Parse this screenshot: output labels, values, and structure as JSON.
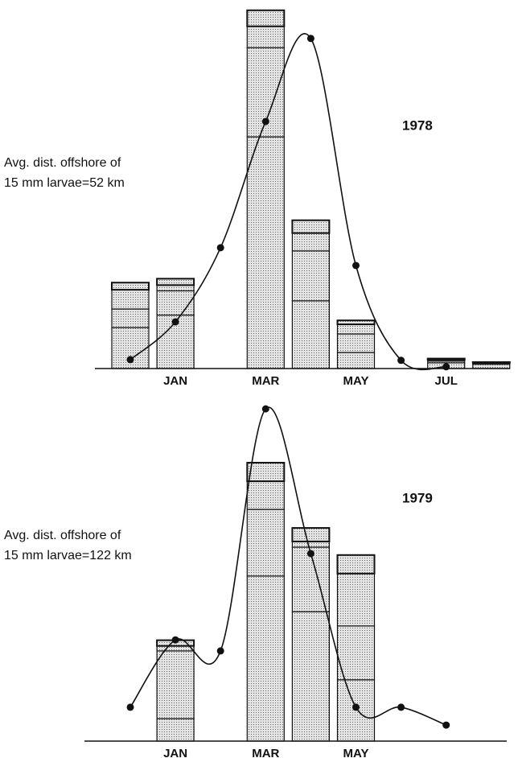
{
  "chart_data": [
    {
      "type": "bar",
      "title": "1978",
      "annotation": [
        "Avg. dist. offshore of",
        "15 mm larvae=52 km"
      ],
      "categories": [
        null,
        "JAN",
        null,
        "MAR",
        null,
        "MAY",
        null,
        "JUL",
        null
      ],
      "ylim": [
        0,
        100
      ],
      "color": "#c8c8c8",
      "line_color": "#111111",
      "series": [
        {
          "color": "#c8c8c8",
          "values": [
            11.5,
            15,
            null,
            65,
            19,
            4.5,
            null,
            1.6,
            1.2
          ]
        },
        {
          "color": "#c8c8c8",
          "values": [
            5.2,
            6.8,
            null,
            25,
            14,
            5.2,
            null,
            0.5,
            0.3
          ]
        },
        {
          "color": "#c8c8c8",
          "values": [
            5.4,
            1.6,
            null,
            6,
            5,
            2.7,
            null,
            0.4,
            0.2
          ]
        },
        {
          "color": "#c8c8c8",
          "values": [
            2,
            1.8,
            null,
            4.5,
            3.6,
            1.1,
            null,
            0.3,
            0.1
          ]
        }
      ],
      "line": {
        "values": [
          2.5,
          13.1,
          33.9,
          69.3,
          92.6,
          28.9,
          2.3,
          0.5,
          null
        ]
      }
    },
    {
      "type": "bar",
      "title": "1979",
      "annotation": [
        "Avg. dist. offshore of",
        "15 mm larvae=122 km"
      ],
      "categories": [
        null,
        "JAN",
        null,
        "MAR",
        null,
        "MAY",
        null,
        null,
        null
      ],
      "ylim": [
        0,
        100
      ],
      "color": "#c8c8c8",
      "line_color": "#111111",
      "series": [
        {
          "color": "#c8c8c8",
          "values": [
            null,
            6.3,
            null,
            46.3,
            36.3,
            17.2,
            null,
            null,
            null
          ]
        },
        {
          "color": "#c8c8c8",
          "values": [
            null,
            19,
            null,
            18.7,
            18.1,
            15.1,
            null,
            null,
            null
          ]
        },
        {
          "color": "#c8c8c8",
          "values": [
            null,
            1.4,
            null,
            7.9,
            1.6,
            14.7,
            null,
            null,
            null
          ]
        },
        {
          "color": "#c8c8c8",
          "values": [
            null,
            1.6,
            null,
            5.2,
            3.8,
            5.2,
            null,
            null,
            null
          ]
        }
      ],
      "line": {
        "values": [
          9.5,
          28.4,
          25.3,
          93.2,
          52.6,
          9.5,
          9.5,
          4.5,
          null
        ]
      }
    }
  ]
}
